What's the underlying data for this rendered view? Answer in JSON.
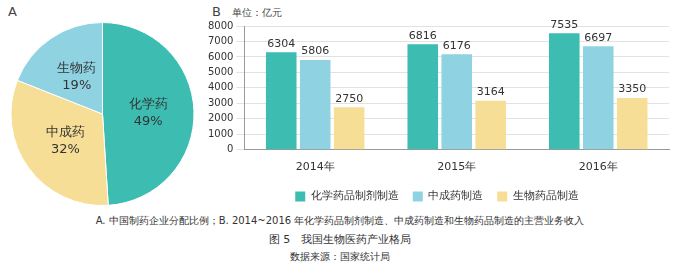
{
  "chart_data": [
    {
      "type": "pie",
      "label": "A",
      "categories": [
        "化学药",
        "中成药",
        "生物药"
      ],
      "values": [
        49,
        32,
        19
      ],
      "value_labels": [
        "49%",
        "32%",
        "19%"
      ],
      "colors": [
        "#3dbdb1",
        "#f6de96",
        "#8fd3e3"
      ],
      "data_labels": true
    },
    {
      "type": "bar",
      "label": "B",
      "y_label": "单位：亿元",
      "categories": [
        "2014年",
        "2015年",
        "2016年"
      ],
      "series": [
        {
          "name": "化学药品制剂制造",
          "color": "#3dbdb1",
          "values": [
            6304,
            6816,
            7535
          ]
        },
        {
          "name": "中成药制造",
          "color": "#8fd3e3",
          "values": [
            5806,
            6176,
            6697
          ]
        },
        {
          "name": "生物药品制造",
          "color": "#f6de96",
          "values": [
            2750,
            3164,
            3350
          ]
        }
      ],
      "ylim": [
        0,
        8000
      ],
      "yticks": [
        0,
        1000,
        2000,
        3000,
        4000,
        5000,
        6000,
        7000,
        8000
      ],
      "grid": true,
      "legend": "bottom",
      "data_labels": true
    }
  ],
  "caption": {
    "text": "A. 中国制药企业分配比例；B. 2014~2016 年化学药品制剂制造、中成药制造和生物药品制造的主营业务收入",
    "figure": "图 5　我国生物医药产业格局",
    "source": "数据来源：国家统计局"
  }
}
